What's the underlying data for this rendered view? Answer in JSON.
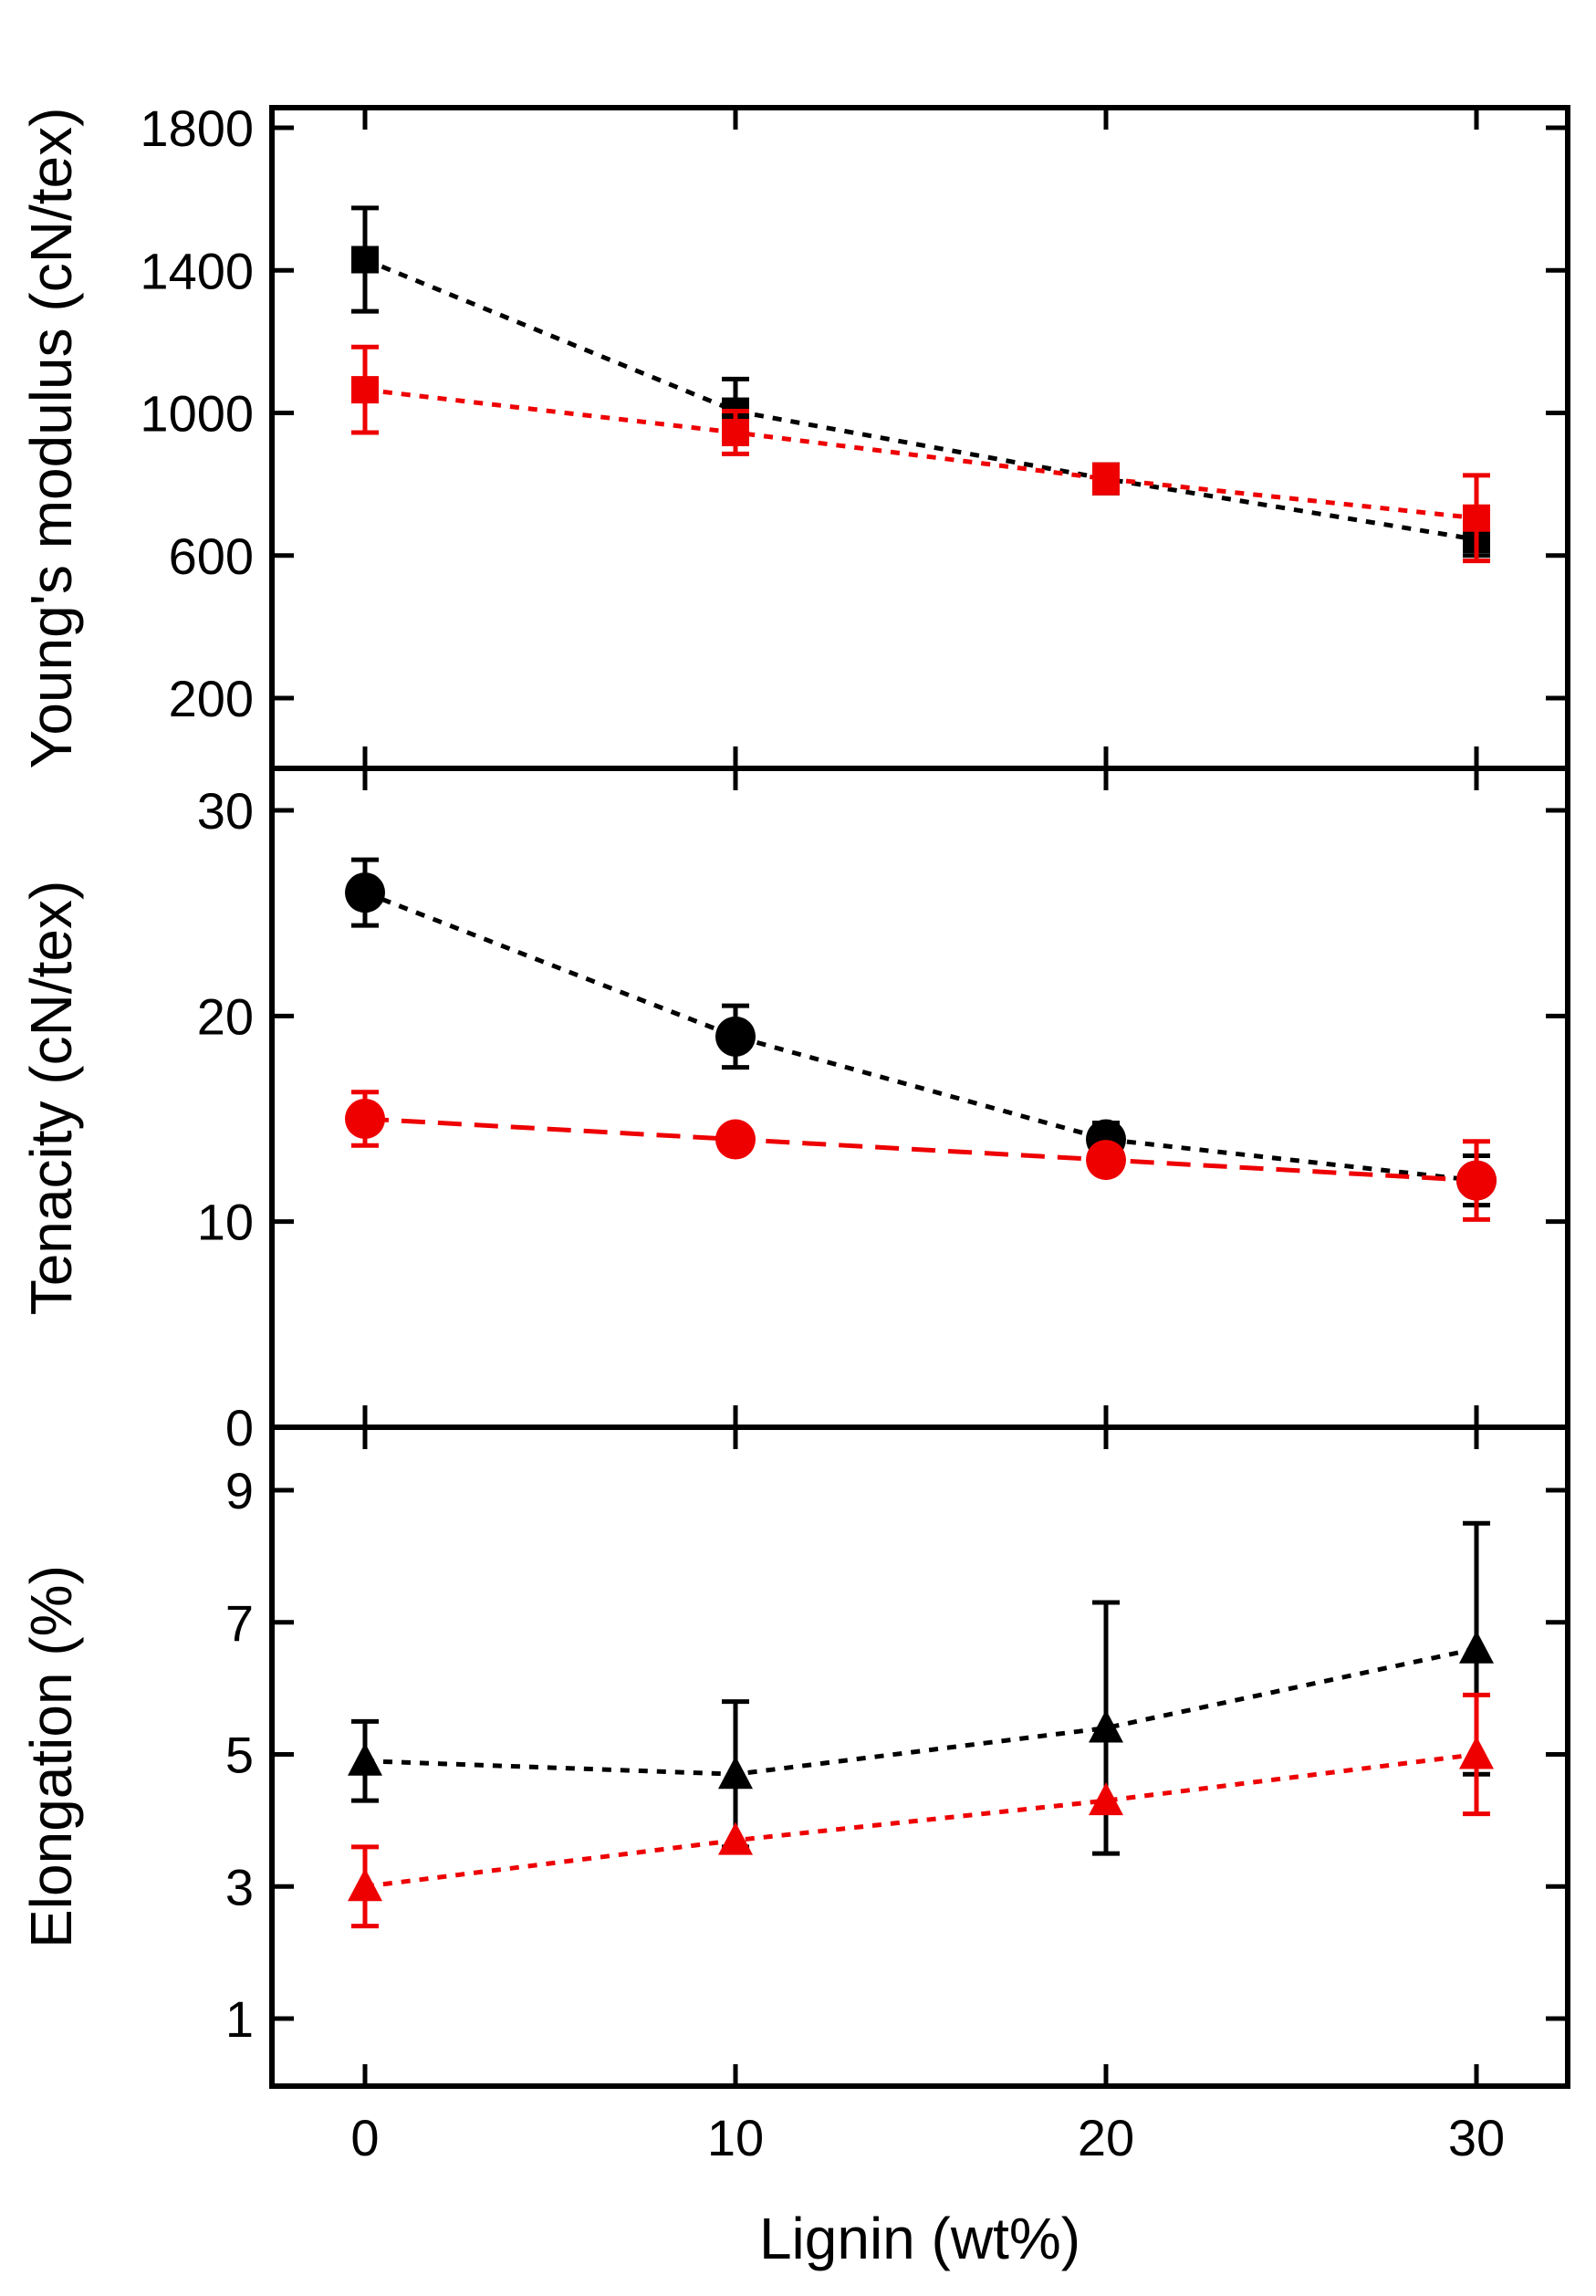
{
  "colors": {
    "black_series": "#000000",
    "red_series": "#ee0000",
    "axes": "#000000",
    "background": "#ffffff"
  },
  "chart_data": [
    {
      "type": "line",
      "id": "modulus",
      "marker": "square",
      "ylabel": "Young's modulus (cN/tex)",
      "ylim": [
        0,
        1850
      ],
      "yticks": [
        200,
        600,
        1000,
        1400,
        1800
      ],
      "xlabel": "",
      "x": [
        0,
        10,
        20,
        30
      ],
      "series": [
        {
          "name": "black",
          "color": "#000000",
          "values": [
            1430,
            1005,
            815,
            645
          ],
          "errors": [
            145,
            90,
            40,
            45
          ]
        },
        {
          "name": "red",
          "color": "#ee0000",
          "values": [
            1065,
            945,
            815,
            705
          ],
          "errors": [
            120,
            60,
            40,
            120
          ]
        }
      ]
    },
    {
      "type": "line",
      "id": "tenacity",
      "marker": "circle",
      "ylabel": "Tenacity (cN/tex)",
      "ylim": [
        0,
        32
      ],
      "yticks": [
        0,
        10,
        20,
        30
      ],
      "xlabel": "",
      "x": [
        0,
        10,
        20,
        30
      ],
      "series": [
        {
          "name": "black",
          "color": "#000000",
          "values": [
            26,
            19,
            14,
            12
          ],
          "errors": [
            1.6,
            1.5,
            0.8,
            1.2
          ]
        },
        {
          "name": "red",
          "color": "#ee0000",
          "values": [
            15,
            14,
            13,
            12
          ],
          "errors": [
            1.3,
            0,
            0,
            1.9
          ]
        }
      ]
    },
    {
      "type": "line",
      "id": "elongation",
      "marker": "triangle",
      "ylabel": "Elongation (%)",
      "ylim": [
        0,
        10
      ],
      "yticks": [
        1,
        3,
        5,
        7,
        9
      ],
      "xlabel": "Lignin (wt%)",
      "xticks": [
        "0",
        "10",
        "20",
        "30"
      ],
      "x": [
        0,
        10,
        20,
        30
      ],
      "series": [
        {
          "name": "black",
          "color": "#000000",
          "values": [
            4.9,
            4.7,
            5.4,
            6.6
          ],
          "errors": [
            0.6,
            1.1,
            1.9,
            1.9
          ]
        },
        {
          "name": "red",
          "color": "#ee0000",
          "values": [
            3.0,
            3.7,
            4.3,
            5.0
          ],
          "errors": [
            0.6,
            0,
            0,
            0.9
          ]
        }
      ]
    }
  ]
}
